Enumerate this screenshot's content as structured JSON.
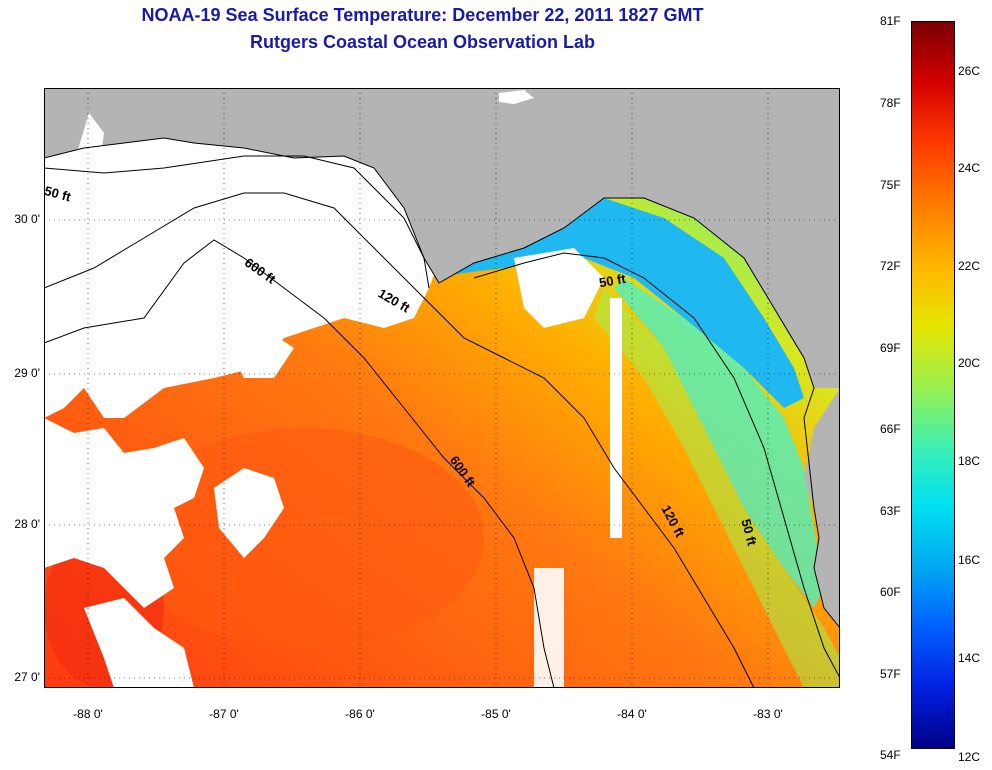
{
  "title": "NOAA-19 Sea Surface Temperature:  December 22, 2011 1827 GMT",
  "subtitle": "Rutgers Coastal Ocean Observation Lab",
  "lat_ticks": [
    {
      "label": "30 0'",
      "value": 30
    },
    {
      "label": "29 0'",
      "value": 29
    },
    {
      "label": "28 0'",
      "value": 28
    },
    {
      "label": "27 0'",
      "value": 27
    }
  ],
  "lon_ticks": [
    {
      "label": "-88 0'",
      "value": -88
    },
    {
      "label": "-87 0'",
      "value": -87
    },
    {
      "label": "-86 0'",
      "value": -86
    },
    {
      "label": "-85 0'",
      "value": -85
    },
    {
      "label": "-84 0'",
      "value": -84
    },
    {
      "label": "-83 0'",
      "value": -83
    }
  ],
  "colorbar": {
    "fahrenheit": [
      "81F",
      "78F",
      "75F",
      "72F",
      "69F",
      "66F",
      "63F",
      "60F",
      "57F",
      "54F"
    ],
    "celsius": [
      "26C",
      "24C",
      "22C",
      "20C",
      "18C",
      "16C",
      "14C",
      "12C"
    ],
    "colors": [
      "#7a0000",
      "#d40000",
      "#ff3a00",
      "#ff7a00",
      "#ffb300",
      "#e8e400",
      "#9cf04a",
      "#3ff0b0",
      "#00e0f0",
      "#00a8f0",
      "#0060ff",
      "#0020e0",
      "#000088"
    ]
  },
  "contours": [
    {
      "label": "50 ft",
      "name": "contour-label-50ft-west"
    },
    {
      "label": "600 ft",
      "name": "contour-label-600ft-north"
    },
    {
      "label": "120 ft",
      "name": "contour-label-120ft-north"
    },
    {
      "label": "50 ft",
      "name": "contour-label-50ft-north"
    },
    {
      "label": "600 ft",
      "name": "contour-label-600ft-south"
    },
    {
      "label": "120 ft",
      "name": "contour-label-120ft-south"
    },
    {
      "label": "50 ft",
      "name": "contour-label-50ft-south"
    }
  ],
  "colors": {
    "land": "#b4b4b4",
    "cloud": "#ffffff",
    "title": "#1a1aa8"
  }
}
